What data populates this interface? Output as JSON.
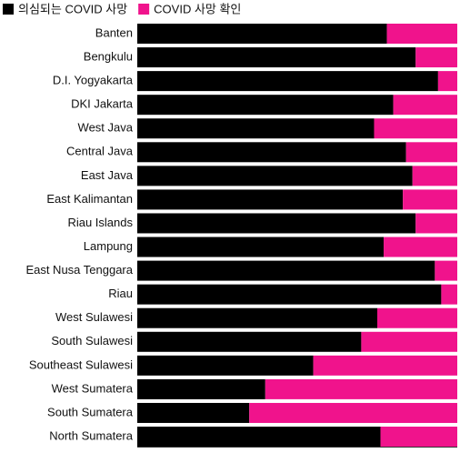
{
  "chart_data": {
    "type": "stacked-bar-horizontal",
    "categories": [
      "Banten",
      "Bengkulu",
      "D.I. Yogyakarta",
      "DKI Jakarta",
      "West Java",
      "Central Java",
      "East Java",
      "East Kalimantan",
      "Riau Islands",
      "Lampung",
      "East Nusa Tenggara",
      "Riau",
      "West Sulawesi",
      "South Sulawesi",
      "Southeast Sulawesi",
      "West Sumatera",
      "South Sumatera",
      "North Sumatera"
    ],
    "series": [
      {
        "name": "의심되는 COVID 사망",
        "color": "#000000",
        "values": [
          78,
          87,
          94,
          80,
          74,
          84,
          86,
          83,
          87,
          77,
          93,
          95,
          75,
          70,
          55,
          40,
          35,
          76
        ]
      },
      {
        "name": "COVID 사망 확인",
        "color": "#f0138c",
        "values": [
          22,
          13,
          6,
          20,
          26,
          16,
          14,
          17,
          13,
          23,
          7,
          5,
          25,
          30,
          45,
          60,
          65,
          24
        ]
      }
    ],
    "xlim": [
      0,
      100
    ]
  }
}
